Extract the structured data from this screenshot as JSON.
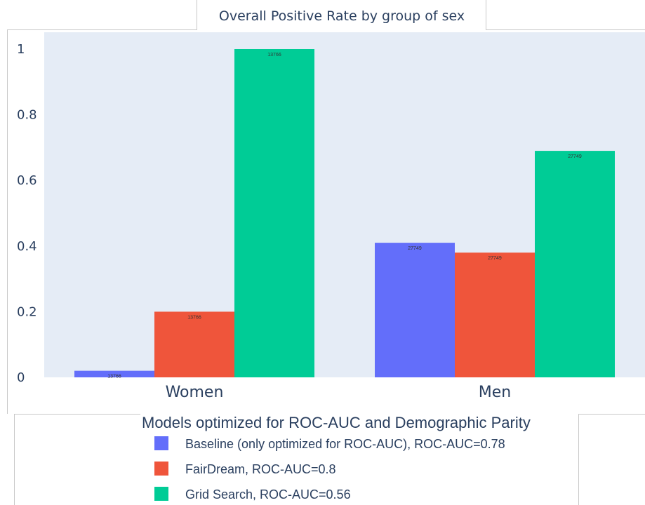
{
  "chart_data": {
    "type": "bar",
    "title": "Overall Positive Rate by group of sex",
    "categories": [
      "Women",
      "Men"
    ],
    "ylim": [
      0,
      1.04
    ],
    "yticks": [
      0,
      0.2,
      0.4,
      0.6,
      0.8,
      1
    ],
    "ytick_labels": [
      "0",
      "0.2",
      "0.4",
      "0.6",
      "0.8",
      "1"
    ],
    "grid": false,
    "legend_title": "Models optimized for ROC-AUC and Demographic Parity",
    "legend_position": "bottom",
    "series": [
      {
        "name": "Baseline (only optimized for ROC-AUC), ROC-AUC=0.78",
        "color": "#636efa",
        "values": [
          0.02,
          0.41
        ],
        "labels": [
          "13766",
          "27749"
        ]
      },
      {
        "name": "FairDream, ROC-AUC=0.8",
        "color": "#ef553b",
        "values": [
          0.2,
          0.38
        ],
        "labels": [
          "13766",
          "27749"
        ]
      },
      {
        "name": "Grid Search, ROC-AUC=0.56",
        "color": "#00cc96",
        "values": [
          1.0,
          0.69
        ],
        "labels": [
          "13766",
          "27749"
        ]
      }
    ]
  }
}
